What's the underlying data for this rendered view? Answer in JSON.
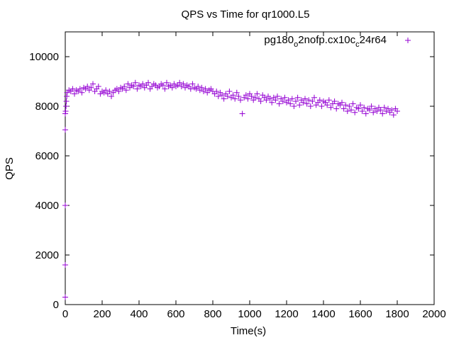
{
  "chart_data": {
    "type": "scatter",
    "title": "QPS vs Time for qr1000.L5",
    "xlabel": "Time(s)",
    "ylabel": "QPS",
    "xlim": [
      0,
      2000
    ],
    "ylim": [
      0,
      11000
    ],
    "xticks": [
      "0",
      "200",
      "400",
      "600",
      "800",
      "1000",
      "1200",
      "1400",
      "1600",
      "1800",
      "2000"
    ],
    "xtick_values": [
      0,
      200,
      400,
      600,
      800,
      1000,
      1200,
      1400,
      1600,
      1800,
      2000
    ],
    "yticks": [
      "0",
      "2000",
      "4000",
      "6000",
      "8000",
      "10000"
    ],
    "ytick_values": [
      0,
      2000,
      4000,
      6000,
      8000,
      10000
    ],
    "grid": false,
    "legend_position": "top-right",
    "series": [
      {
        "name": "pg180_o2nofp.cx10c_c24r64",
        "legend_parts": [
          "pg180",
          "o",
          "2nofp.cx10c",
          "c",
          "24r64"
        ],
        "color": "#9400d3",
        "marker": "plus",
        "early_x": [
          0,
          0,
          0,
          0,
          0,
          2,
          4,
          6,
          8
        ],
        "early_y": [
          300,
          1600,
          4000,
          7050,
          7700,
          7800,
          8000,
          8200,
          8400
        ],
        "x_start": 10,
        "x_step": 10,
        "y": [
          8550,
          8650,
          8600,
          8700,
          8500,
          8650,
          8600,
          8700,
          8550,
          8750,
          8700,
          8800,
          8650,
          8750,
          8900,
          8600,
          8700,
          8800,
          8500,
          8600,
          8550,
          8650,
          8500,
          8600,
          8400,
          8550,
          8650,
          8700,
          8600,
          8750,
          8700,
          8800,
          8650,
          8900,
          8750,
          8850,
          8800,
          8950,
          8700,
          8850,
          8800,
          8900,
          8750,
          8850,
          8950,
          8700,
          8800,
          8900,
          8850,
          8750,
          8800,
          8900,
          8850,
          8700,
          8950,
          8800,
          8850,
          8750,
          8900,
          8800,
          8850,
          8950,
          8800,
          8900,
          8750,
          8850,
          8800,
          8700,
          8900,
          8750,
          8700,
          8800,
          8650,
          8750,
          8600,
          8700,
          8550,
          8650,
          8700,
          8600,
          8500,
          8600,
          8400,
          8550,
          8450,
          8300,
          8500,
          8400,
          8600,
          8350,
          8450,
          8300,
          8550,
          8400,
          8250,
          7700,
          8350,
          8450,
          8300,
          8500,
          8400,
          8250,
          8350,
          8500,
          8300,
          8200,
          8450,
          8350,
          8250,
          8400,
          8300,
          8150,
          8350,
          8250,
          8400,
          8100,
          8300,
          8200,
          8350,
          8150,
          8250,
          8100,
          8300,
          8000,
          8200,
          8350,
          8050,
          8250,
          8150,
          8300,
          8100,
          8250,
          8000,
          8200,
          8350,
          8050,
          8150,
          8250,
          8000,
          8200,
          8150,
          8050,
          8250,
          7950,
          8100,
          8200,
          7900,
          8100,
          8050,
          8150,
          7900,
          8050,
          7800,
          8000,
          7850,
          8100,
          7750,
          7950,
          7900,
          8050,
          7800,
          7950,
          7700,
          7900,
          7850,
          8000,
          7750,
          7900,
          7800,
          7950,
          7850,
          7700,
          7950,
          7800,
          7900,
          7750,
          7850,
          7650,
          7900,
          7800
        ]
      }
    ]
  }
}
